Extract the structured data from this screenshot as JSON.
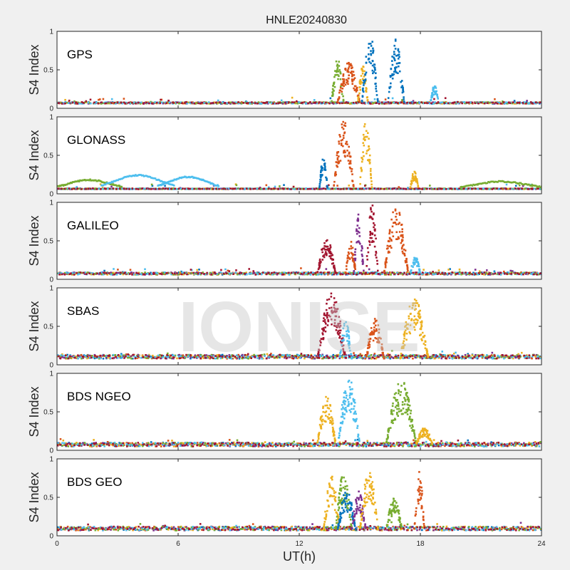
{
  "chart_data": {
    "type": "scatter",
    "title": "HNLE20240830",
    "xlabel": "UT(h)",
    "ylabel": "S4 Index",
    "xlim": [
      0,
      24
    ],
    "ylim": [
      0,
      1
    ],
    "xticks": [
      "0",
      "6",
      "12",
      "18",
      "24"
    ],
    "yticks": [
      "0",
      "0.5",
      "1"
    ],
    "watermark": "IONISE",
    "colors": [
      "#0072BD",
      "#D95319",
      "#EDB120",
      "#7E2F8E",
      "#77AC30",
      "#4DBEEE",
      "#A2142F"
    ],
    "panels": [
      {
        "label": "GPS",
        "background": [
          0.06,
          0.08
        ],
        "events": [
          {
            "color": "#77AC30",
            "t0": 13.6,
            "t1": 14.2,
            "peak": 0.65
          },
          {
            "color": "#D95319",
            "t0": 13.9,
            "t1": 15.0,
            "peak": 0.6
          },
          {
            "color": "#EDB120",
            "t0": 14.9,
            "t1": 15.4,
            "peak": 0.55
          },
          {
            "color": "#0072BD",
            "t0": 15.1,
            "t1": 15.9,
            "peak": 0.97
          },
          {
            "color": "#0072BD",
            "t0": 16.4,
            "t1": 17.2,
            "peak": 0.9
          },
          {
            "color": "#4DBEEE",
            "t0": 18.5,
            "t1": 18.9,
            "peak": 0.3
          }
        ]
      },
      {
        "label": "GLONASS",
        "background": [
          0.06,
          0.07
        ],
        "arcs": [
          {
            "color": "#77AC30",
            "t0": 0.0,
            "t1": 3.2,
            "peak": 0.18
          },
          {
            "color": "#4DBEEE",
            "t0": 2.2,
            "t1": 5.8,
            "peak": 0.24
          },
          {
            "color": "#4DBEEE",
            "t0": 5.0,
            "t1": 8.0,
            "peak": 0.22
          },
          {
            "color": "#77AC30",
            "t0": 20.0,
            "t1": 24.0,
            "peak": 0.16
          }
        ],
        "events": [
          {
            "color": "#0072BD",
            "t0": 13.0,
            "t1": 13.4,
            "peak": 0.48
          },
          {
            "color": "#D95319",
            "t0": 13.7,
            "t1": 14.7,
            "peak": 0.95
          },
          {
            "color": "#EDB120",
            "t0": 15.0,
            "t1": 15.6,
            "peak": 0.98
          },
          {
            "color": "#EDB120",
            "t0": 17.5,
            "t1": 17.9,
            "peak": 0.3
          }
        ]
      },
      {
        "label": "GALILEO",
        "background": [
          0.06,
          0.09
        ],
        "events": [
          {
            "color": "#A2142F",
            "t0": 12.9,
            "t1": 13.8,
            "peak": 0.55
          },
          {
            "color": "#D95319",
            "t0": 14.3,
            "t1": 14.8,
            "peak": 0.5
          },
          {
            "color": "#7E2F8E",
            "t0": 14.7,
            "t1": 15.2,
            "peak": 0.85
          },
          {
            "color": "#A2142F",
            "t0": 15.3,
            "t1": 15.9,
            "peak": 0.98
          },
          {
            "color": "#D95319",
            "t0": 16.2,
            "t1": 17.4,
            "peak": 0.95
          },
          {
            "color": "#4DBEEE",
            "t0": 17.5,
            "t1": 18.0,
            "peak": 0.3
          }
        ]
      },
      {
        "label": "SBAS",
        "background": [
          0.08,
          0.13
        ],
        "events": [
          {
            "color": "#A2142F",
            "t0": 12.9,
            "t1": 14.3,
            "peak": 0.97
          },
          {
            "color": "#4DBEEE",
            "t0": 14.0,
            "t1": 14.6,
            "peak": 0.6
          },
          {
            "color": "#D95319",
            "t0": 15.3,
            "t1": 16.2,
            "peak": 0.6
          },
          {
            "color": "#EDB120",
            "t0": 17.0,
            "t1": 18.4,
            "peak": 0.88
          }
        ]
      },
      {
        "label": "BDS NGEO",
        "background": [
          0.05,
          0.1
        ],
        "events": [
          {
            "color": "#EDB120",
            "t0": 12.9,
            "t1": 13.8,
            "peak": 0.72
          },
          {
            "color": "#4DBEEE",
            "t0": 13.9,
            "t1": 15.0,
            "peak": 0.95
          },
          {
            "color": "#77AC30",
            "t0": 16.3,
            "t1": 17.8,
            "peak": 0.92
          },
          {
            "color": "#EDB120",
            "t0": 17.8,
            "t1": 18.6,
            "peak": 0.3
          }
        ]
      },
      {
        "label": "BDS GEO",
        "background": [
          0.07,
          0.12
        ],
        "events": [
          {
            "color": "#EDB120",
            "t0": 13.2,
            "t1": 14.0,
            "peak": 0.8
          },
          {
            "color": "#77AC30",
            "t0": 13.8,
            "t1": 14.6,
            "peak": 0.85
          },
          {
            "color": "#0072BD",
            "t0": 13.9,
            "t1": 14.8,
            "peak": 0.6
          },
          {
            "color": "#7E2F8E",
            "t0": 14.6,
            "t1": 15.3,
            "peak": 0.6
          },
          {
            "color": "#EDB120",
            "t0": 15.0,
            "t1": 15.9,
            "peak": 0.9
          },
          {
            "color": "#77AC30",
            "t0": 16.3,
            "t1": 17.1,
            "peak": 0.5
          },
          {
            "color": "#D95319",
            "t0": 17.7,
            "t1": 18.2,
            "peak": 0.85
          }
        ]
      }
    ]
  }
}
